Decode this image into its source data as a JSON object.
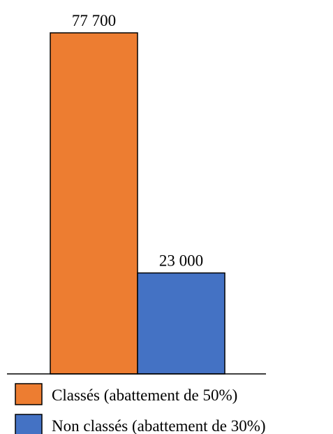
{
  "chart_data": {
    "type": "bar",
    "categories": [
      "Classés (abattement de 50%)",
      "Non classés (abattement de 30%)"
    ],
    "values": [
      77700,
      23000
    ],
    "value_labels": [
      "77 700",
      "23 000"
    ],
    "colors": [
      "#ED7D31",
      "#4472C4"
    ],
    "ylim": [
      0,
      77700
    ],
    "grid": false,
    "legend_position": "bottom-left",
    "title": "",
    "xlabel": "",
    "ylabel": ""
  }
}
